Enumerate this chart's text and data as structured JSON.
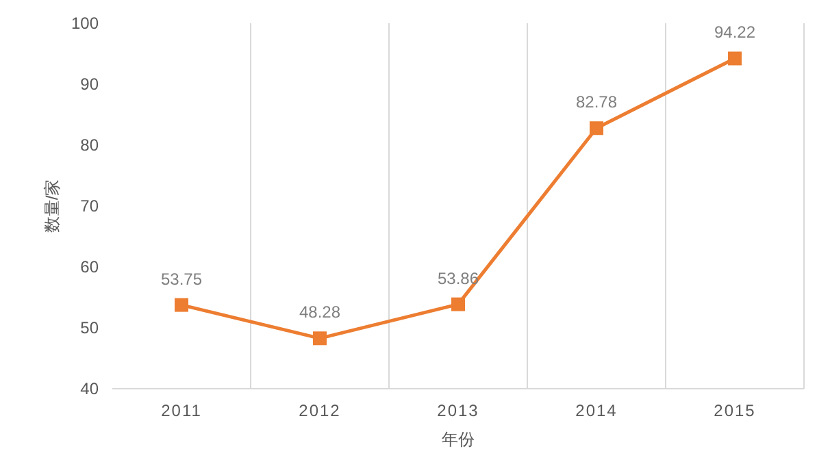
{
  "chart_data": {
    "type": "line",
    "xlabel": "年份",
    "ylabel": "数量/家",
    "categories": [
      "2011",
      "2012",
      "2013",
      "2014",
      "2015"
    ],
    "series": [
      {
        "color": "#ed7d31",
        "values": [
          53.75,
          48.28,
          53.86,
          82.78,
          94.22
        ]
      }
    ],
    "ylim": [
      40,
      100
    ],
    "yticks": [
      40,
      50,
      60,
      70,
      80,
      90,
      100
    ],
    "grid": "x",
    "marker": "square",
    "line_style": "solid",
    "data_labels": true
  }
}
